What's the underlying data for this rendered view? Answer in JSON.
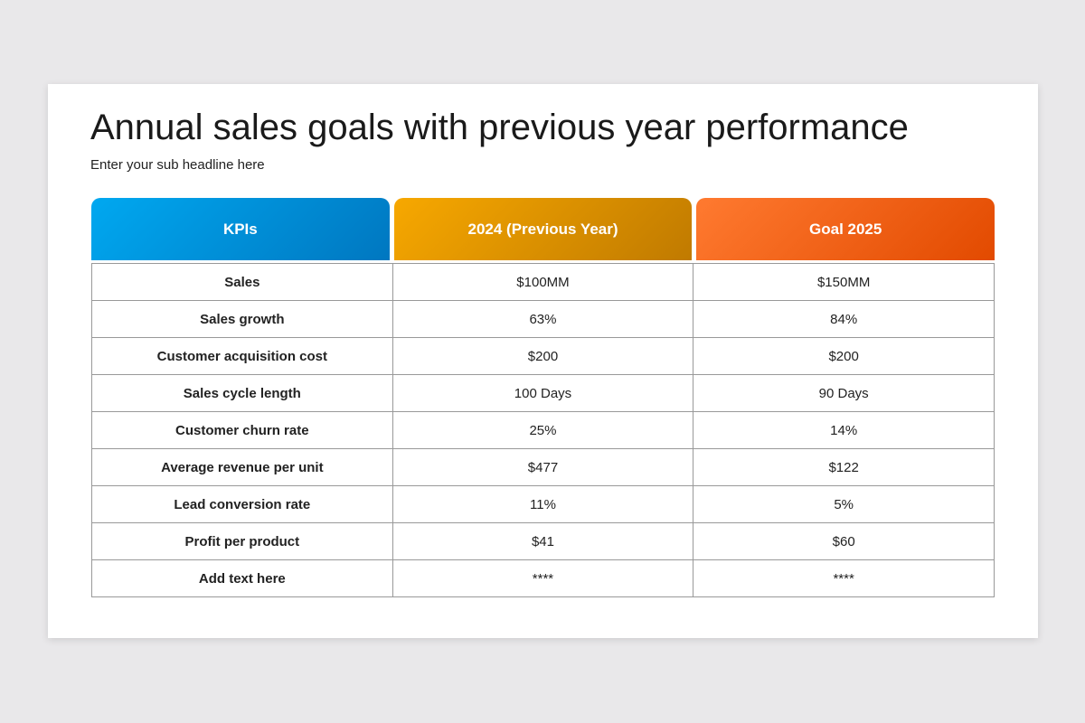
{
  "header": {
    "title": "Annual sales goals with previous year performance",
    "subtitle": "Enter your sub headline here"
  },
  "table": {
    "columns": [
      "KPIs",
      "2024 (Previous Year)",
      "Goal 2025"
    ],
    "rows": [
      [
        "Sales",
        "$100MM",
        "$150MM"
      ],
      [
        "Sales growth",
        "63%",
        "84%"
      ],
      [
        "Customer acquisition cost",
        "$200",
        "$200"
      ],
      [
        "Sales cycle length",
        "100 Days",
        "90 Days"
      ],
      [
        "Customer churn rate",
        "25%",
        "14%"
      ],
      [
        "Average revenue per unit",
        "$477",
        "$122"
      ],
      [
        "Lead conversion rate",
        "11%",
        "5%"
      ],
      [
        "Profit per product",
        "$41",
        "$60"
      ],
      [
        "Add text here",
        "****",
        "****"
      ]
    ]
  }
}
